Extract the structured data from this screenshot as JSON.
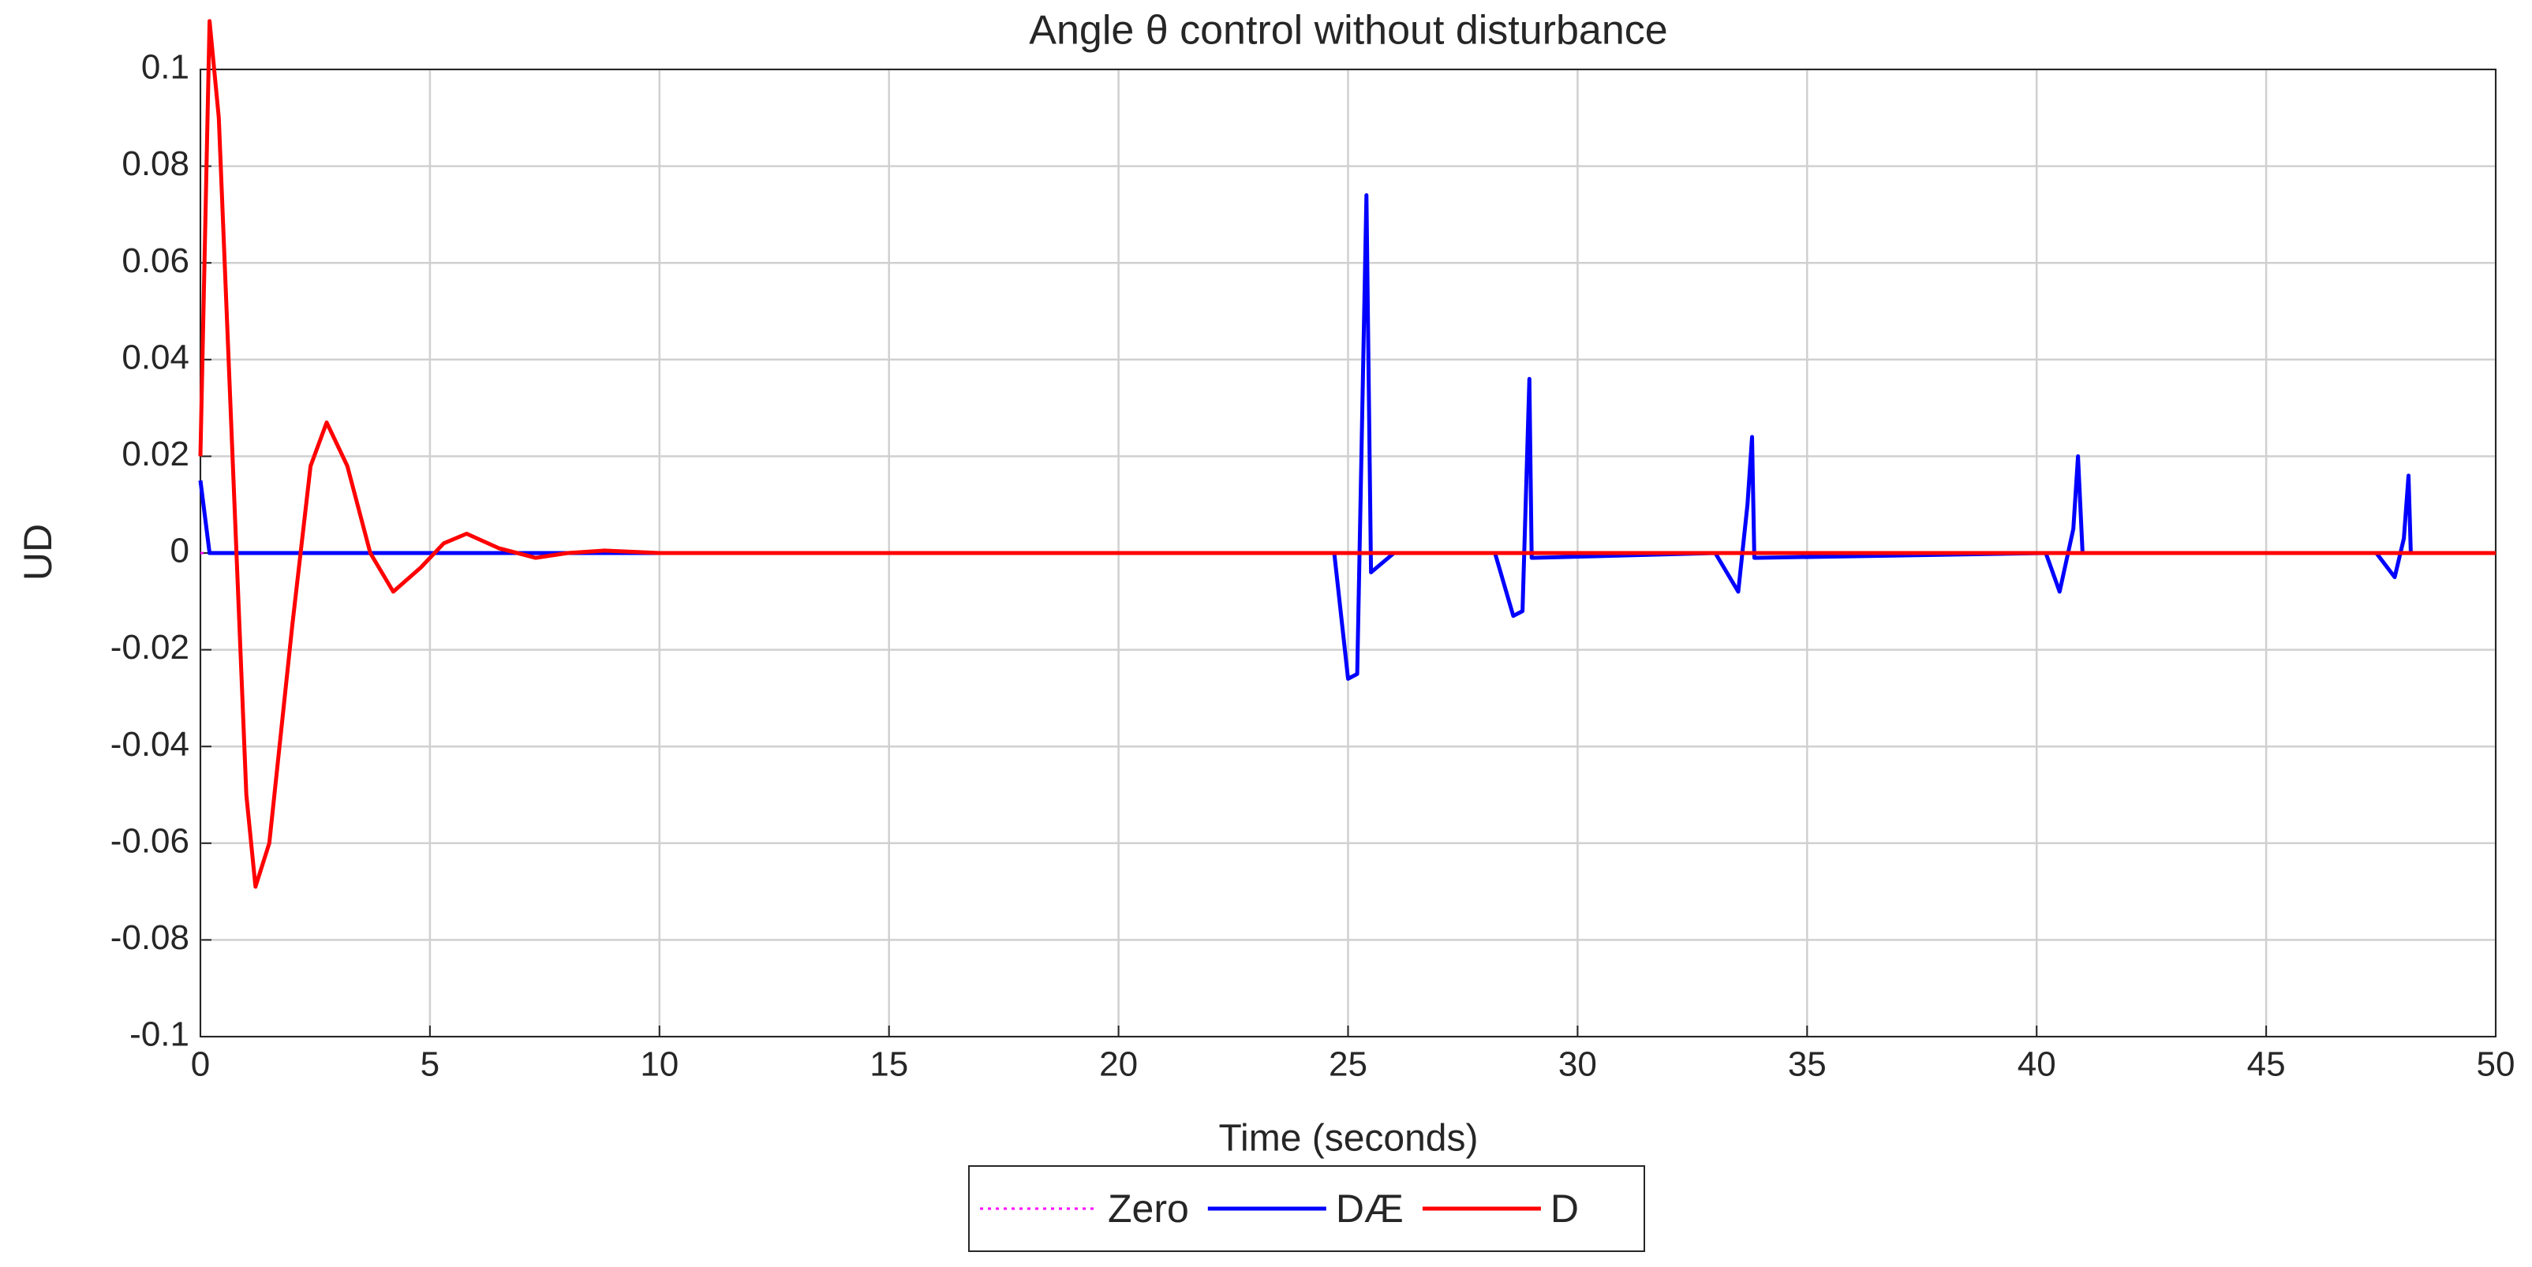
{
  "chart_data": {
    "type": "line",
    "title": "Angle θ control without disturbance",
    "xlabel": "Time (seconds)",
    "ylabel": "UD",
    "x": [
      0,
      0.2,
      0.4,
      0.7,
      1.0,
      1.2,
      1.5,
      2.0,
      2.4,
      2.75,
      3.2,
      3.7,
      4.2,
      4.8,
      5.3,
      5.8,
      6.5,
      7.3,
      8.0,
      8.8,
      10,
      15,
      20,
      24.7,
      25.0,
      25.2,
      25.4,
      25.5,
      26,
      28.2,
      28.6,
      28.8,
      28.95,
      29.0,
      33.0,
      33.5,
      33.7,
      33.8,
      33.85,
      40.2,
      40.5,
      40.8,
      40.9,
      41.0,
      47.4,
      47.8,
      48.0,
      48.1,
      48.15,
      50
    ],
    "series": [
      {
        "name": "Zero",
        "color": "#ff00ff",
        "dashed": true,
        "values": [
          0,
          0,
          0,
          0,
          0,
          0,
          0,
          0,
          0,
          0,
          0,
          0,
          0,
          0,
          0,
          0,
          0,
          0,
          0,
          0,
          0,
          0,
          0,
          0,
          0,
          0,
          0,
          0,
          0,
          0,
          0,
          0,
          0,
          0,
          0,
          0,
          0,
          0,
          0,
          0,
          0,
          0,
          0,
          0,
          0,
          0,
          0,
          0,
          0,
          0
        ]
      },
      {
        "name": "DÆ",
        "color": "#0000ff",
        "dashed": false,
        "values": [
          0.015,
          0,
          0,
          0,
          0,
          0,
          0,
          0,
          0,
          0,
          0,
          0,
          0,
          0,
          0,
          0,
          0,
          0,
          0,
          0,
          0,
          0,
          0,
          0,
          -0.026,
          -0.025,
          0.074,
          -0.004,
          0,
          0,
          -0.013,
          -0.012,
          0.036,
          -0.001,
          0,
          -0.008,
          0.01,
          0.024,
          -0.001,
          0,
          -0.008,
          0.005,
          0.02,
          0,
          0,
          -0.005,
          0.003,
          0.016,
          0,
          0
        ]
      },
      {
        "name": "D",
        "color": "#ff0000",
        "dashed": false,
        "values": [
          0.02,
          0.11,
          0.09,
          0.02,
          -0.05,
          -0.069,
          -0.06,
          -0.015,
          0.018,
          0.027,
          0.018,
          0,
          -0.008,
          -0.003,
          0.002,
          0.004,
          0.001,
          -0.001,
          0,
          0.0005,
          0,
          0,
          0,
          0,
          0,
          0,
          0,
          0,
          0,
          0,
          0,
          0,
          0,
          0,
          0,
          0,
          0,
          0,
          0,
          0,
          0,
          0,
          0,
          0,
          0,
          0,
          0,
          0,
          0,
          0
        ]
      }
    ],
    "xlim": [
      0,
      50
    ],
    "xticks": [
      0,
      5,
      10,
      15,
      20,
      25,
      30,
      35,
      40,
      45,
      50
    ],
    "ylim": [
      -0.1,
      0.1
    ],
    "yticks": [
      -0.1,
      -0.08,
      -0.06,
      -0.04,
      -0.02,
      0,
      0.02,
      0.04,
      0.06,
      0.08,
      0.1
    ],
    "grid": true,
    "legend": "bottom"
  }
}
